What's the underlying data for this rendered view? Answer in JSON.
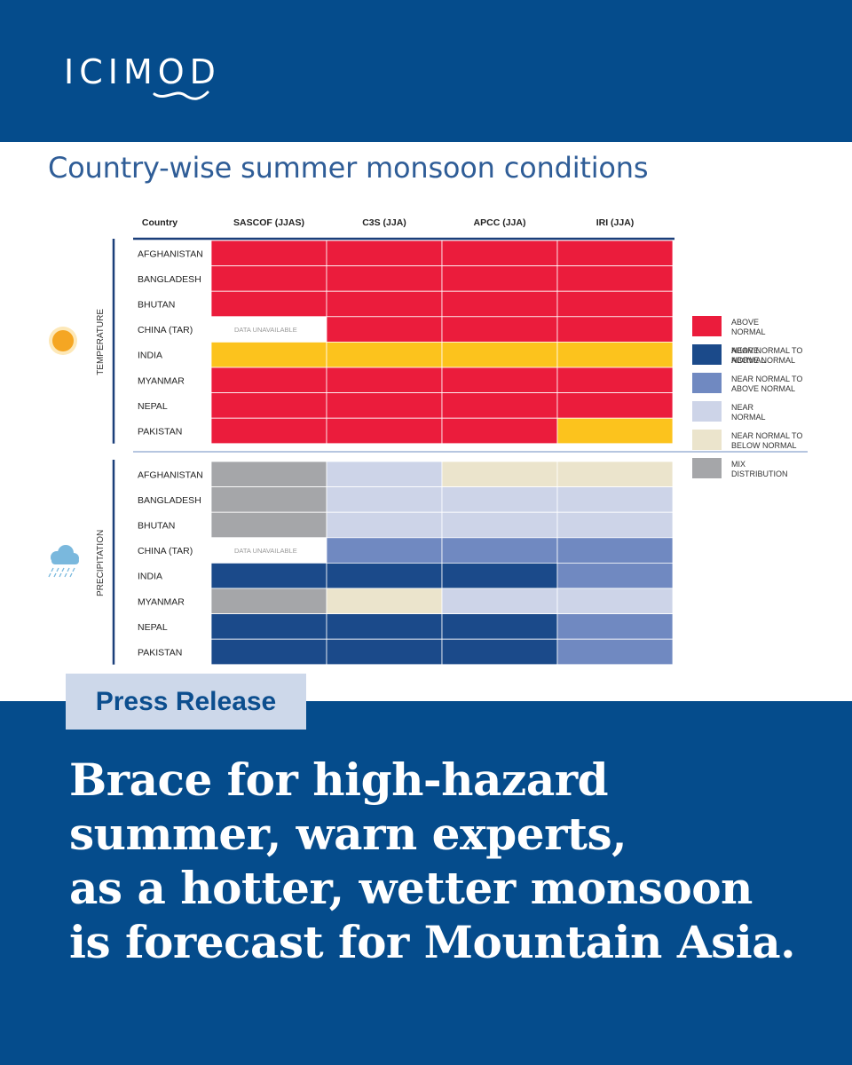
{
  "brand": {
    "logo_text": "ICIMOD"
  },
  "chart_data": {
    "type": "table",
    "title": "Country-wise summer monsoon conditions",
    "columns": [
      "Country",
      "SASCOF (JJAS)",
      "C3S (JJA)",
      "APCC (JJA)",
      "IRI (JJA)"
    ],
    "unavailable_text": "DATA UNAVAILABLE",
    "colors": {
      "above": "#eb1c3c",
      "near_above": "#fcc31d",
      "p_above": "#1b4a8a",
      "p_near_above": "#7089c1",
      "p_near": "#cdd4e8",
      "p_near_below": "#ebe4cc",
      "p_mix": "#a5a6a9",
      "na": "#ffffff"
    },
    "sections": [
      {
        "label": "TEMPERATURE",
        "icon": "sun-icon",
        "rows": [
          {
            "country": "AFGHANISTAN",
            "values": [
              "above",
              "above",
              "above",
              "above"
            ]
          },
          {
            "country": "BANGLADESH",
            "values": [
              "above",
              "above",
              "above",
              "above"
            ]
          },
          {
            "country": "BHUTAN",
            "values": [
              "above",
              "above",
              "above",
              "above"
            ]
          },
          {
            "country": "CHINA (TAR)",
            "values": [
              "na",
              "above",
              "above",
              "above"
            ]
          },
          {
            "country": "INDIA",
            "values": [
              "near_above",
              "near_above",
              "near_above",
              "near_above"
            ]
          },
          {
            "country": "MYANMAR",
            "values": [
              "above",
              "above",
              "above",
              "above"
            ]
          },
          {
            "country": "NEPAL",
            "values": [
              "above",
              "above",
              "above",
              "above"
            ]
          },
          {
            "country": "PAKISTAN",
            "values": [
              "above",
              "above",
              "above",
              "near_above"
            ]
          }
        ],
        "legend": [
          {
            "key": "above",
            "lines": [
              "ABOVE",
              "NORMAL"
            ]
          },
          {
            "key": "near_above",
            "lines": [
              "NEAR NORMAL TO",
              "ABOVE NORMAL"
            ]
          }
        ]
      },
      {
        "label": "PRECIPITATION",
        "icon": "rain-cloud-icon",
        "rows": [
          {
            "country": "AFGHANISTAN",
            "values": [
              "p_mix",
              "p_near",
              "p_near_below",
              "p_near_below"
            ]
          },
          {
            "country": "BANGLADESH",
            "values": [
              "p_mix",
              "p_near",
              "p_near",
              "p_near"
            ]
          },
          {
            "country": "BHUTAN",
            "values": [
              "p_mix",
              "p_near",
              "p_near",
              "p_near"
            ]
          },
          {
            "country": "CHINA (TAR)",
            "values": [
              "na",
              "p_near_above",
              "p_near_above",
              "p_near_above"
            ]
          },
          {
            "country": "INDIA",
            "values": [
              "p_above",
              "p_above",
              "p_above",
              "p_near_above"
            ]
          },
          {
            "country": "MYANMAR",
            "values": [
              "p_mix",
              "p_near_below",
              "p_near",
              "p_near"
            ]
          },
          {
            "country": "NEPAL",
            "values": [
              "p_above",
              "p_above",
              "p_above",
              "p_near_above"
            ]
          },
          {
            "country": "PAKISTAN",
            "values": [
              "p_above",
              "p_above",
              "p_above",
              "p_near_above"
            ]
          }
        ],
        "legend": [
          {
            "key": "p_above",
            "lines": [
              "ABOVE",
              "NORMAL"
            ]
          },
          {
            "key": "p_near_above",
            "lines": [
              "NEAR NORMAL TO",
              "ABOVE NORMAL"
            ]
          },
          {
            "key": "p_near",
            "lines": [
              "NEAR",
              "NORMAL"
            ]
          },
          {
            "key": "p_near_below",
            "lines": [
              "NEAR NORMAL TO",
              "BELOW NORMAL"
            ]
          },
          {
            "key": "p_mix",
            "lines": [
              "MIX",
              "DISTRIBUTION"
            ]
          }
        ]
      }
    ]
  },
  "press": {
    "tag": "Press Release"
  },
  "headline": {
    "lines": [
      "Brace for high-hazard",
      "summer, warn experts,",
      "as a hotter, wetter monsoon",
      "is forecast for Mountain Asia."
    ]
  }
}
